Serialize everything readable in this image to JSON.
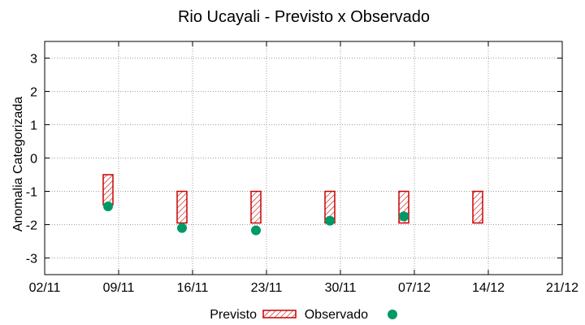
{
  "chart_data": {
    "type": "floating-bar+scatter",
    "title": "Rio Ucayali - Previsto x Observado",
    "xlabel": "",
    "ylabel": "Anomalia Categorizada",
    "ylim": [
      -3.5,
      3.5
    ],
    "yticks": [
      -3,
      -2,
      -1,
      0,
      1,
      2,
      3
    ],
    "xlim": [
      "2024-11-02",
      "2024-12-21"
    ],
    "xticks": [
      "02/11",
      "09/11",
      "16/11",
      "23/11",
      "30/11",
      "07/12",
      "14/12",
      "21/12"
    ],
    "grid": true,
    "legend_position": "bottom",
    "series": [
      {
        "name": "Previsto",
        "kind": "range-bar",
        "color": "#cc0000",
        "pattern": "diagonal-hatch",
        "points": [
          {
            "x": "2024-11-08",
            "low": -1.4,
            "high": -0.5
          },
          {
            "x": "2024-11-15",
            "low": -1.95,
            "high": -1.0
          },
          {
            "x": "2024-11-22",
            "low": -1.95,
            "high": -1.0
          },
          {
            "x": "2024-11-29",
            "low": -1.95,
            "high": -1.0
          },
          {
            "x": "2024-12-06",
            "low": -1.95,
            "high": -1.0
          },
          {
            "x": "2024-12-13",
            "low": -1.95,
            "high": -1.0
          }
        ]
      },
      {
        "name": "Observado",
        "kind": "scatter",
        "color": "#009966",
        "points": [
          {
            "x": "2024-11-08",
            "y": -1.45
          },
          {
            "x": "2024-11-15",
            "y": -2.1
          },
          {
            "x": "2024-11-22",
            "y": -2.17
          },
          {
            "x": "2024-11-29",
            "y": -1.88
          },
          {
            "x": "2024-12-06",
            "y": -1.75
          }
        ]
      }
    ]
  }
}
